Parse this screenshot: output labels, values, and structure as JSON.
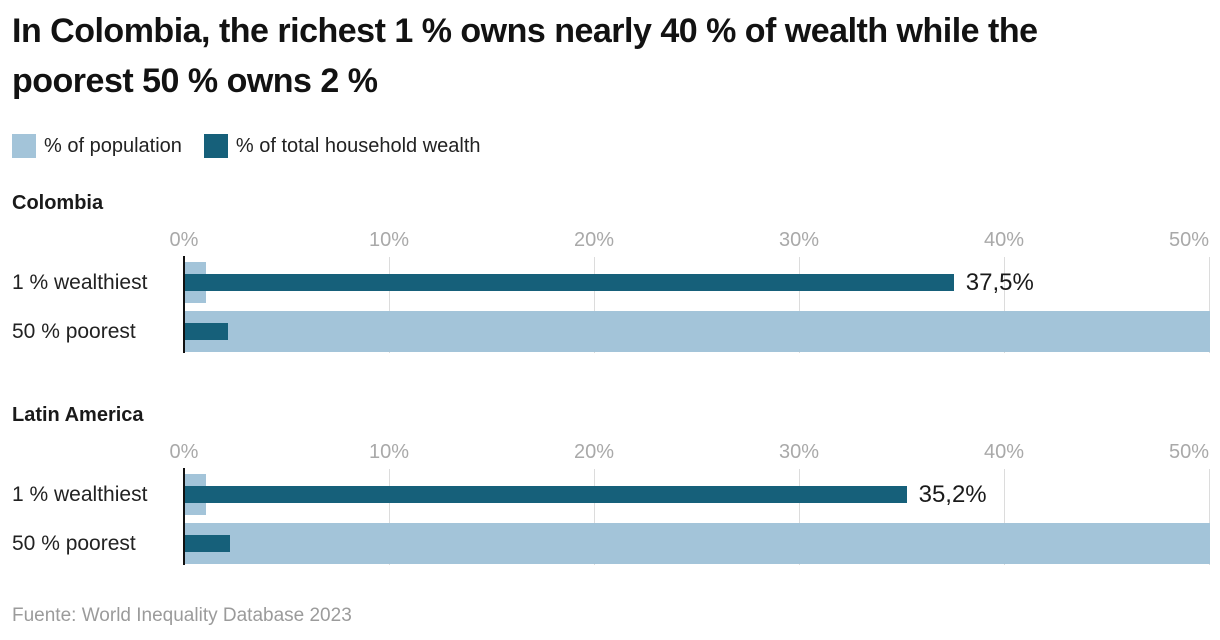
{
  "header": {
    "title": "In Colombia, the richest 1 % owns nearly 40 % of wealth while the poorest 50 % owns 2 %"
  },
  "legend": {
    "items": [
      {
        "label": "% of population",
        "color": "#a3c4d9"
      },
      {
        "label": "% of total household wealth",
        "color": "#16607a"
      }
    ]
  },
  "colors": {
    "population_bar": "#a3c4d9",
    "wealth_bar": "#16607a",
    "gridline": "#dcdcdc",
    "axis_line": "#111111",
    "tick_text": "#a9a9a9"
  },
  "chart_data": [
    {
      "type": "bar",
      "title": "Colombia",
      "orientation": "horizontal",
      "categories": [
        "1 % wealthiest",
        "50 % poorest"
      ],
      "series": [
        {
          "name": "% of population",
          "values": [
            1,
            50
          ]
        },
        {
          "name": "% of total household wealth",
          "values": [
            37.5,
            2.1
          ]
        }
      ],
      "value_labels": [
        "37,5%",
        null
      ],
      "xlim": [
        0,
        50
      ],
      "tick_values": [
        0,
        10,
        20,
        30,
        40,
        50
      ],
      "tick_labels": [
        "0%",
        "10%",
        "20%",
        "30%",
        "40%",
        "50%"
      ],
      "grid": true,
      "legend_position": "top"
    },
    {
      "type": "bar",
      "title": "Latin America",
      "orientation": "horizontal",
      "categories": [
        "1 % wealthiest",
        "50 % poorest"
      ],
      "series": [
        {
          "name": "% of population",
          "values": [
            1,
            50
          ]
        },
        {
          "name": "% of total household wealth",
          "values": [
            35.2,
            2.2
          ]
        }
      ],
      "value_labels": [
        "35,2%",
        null
      ],
      "xlim": [
        0,
        50
      ],
      "tick_values": [
        0,
        10,
        20,
        30,
        40,
        50
      ],
      "tick_labels": [
        "0%",
        "10%",
        "20%",
        "30%",
        "40%",
        "50%"
      ],
      "grid": true,
      "legend_position": "top"
    }
  ],
  "footer": {
    "source": "Fuente: World Inequality Database 2023"
  }
}
